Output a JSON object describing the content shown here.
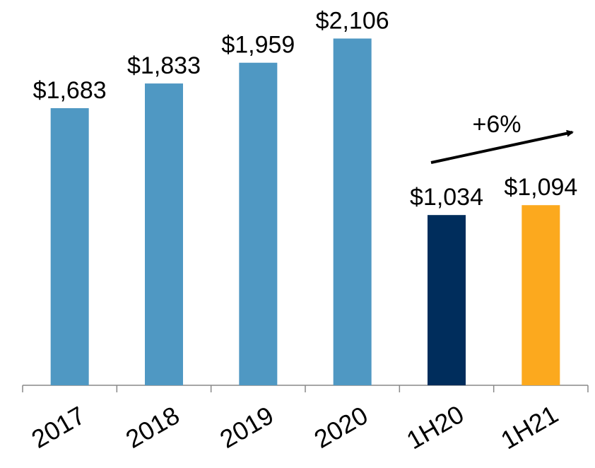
{
  "chart_data": {
    "type": "bar",
    "categories": [
      "2017",
      "2018",
      "2019",
      "2020",
      "1H20",
      "1H21"
    ],
    "values": [
      1683,
      1833,
      1959,
      2106,
      1034,
      1094
    ],
    "value_labels": [
      "$1,683",
      "$1,833",
      "$1,959",
      "$2,106",
      "$1,034",
      "$1,094"
    ],
    "colors": [
      "#4f98c3",
      "#4f98c3",
      "#4f98c3",
      "#4f98c3",
      "#002d5c",
      "#fca91e"
    ],
    "ylim": [
      0,
      2340
    ],
    "annotation": "+6%"
  }
}
